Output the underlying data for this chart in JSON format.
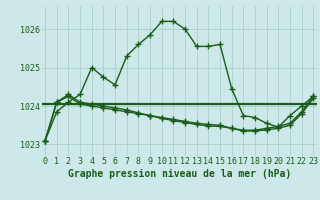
{
  "title": "Graphe pression niveau de la mer (hPa)",
  "x_labels": [
    "0",
    "1",
    "2",
    "3",
    "4",
    "5",
    "6",
    "7",
    "8",
    "9",
    "10",
    "11",
    "12",
    "13",
    "14",
    "15",
    "16",
    "17",
    "18",
    "19",
    "20",
    "21",
    "22",
    "23"
  ],
  "xlim": [
    -0.3,
    23.3
  ],
  "ylim": [
    1022.7,
    1026.6
  ],
  "yticks": [
    1023,
    1024,
    1025,
    1026
  ],
  "background_color": "#cce8e8",
  "grid_color": "#aacfcf",
  "line_color": "#1a5c1a",
  "line_width": 1.0,
  "marker": "+",
  "marker_size": 4,
  "marker_ew": 1.0,
  "series1": [
    1023.1,
    1023.85,
    1024.1,
    1024.3,
    1025.0,
    1024.75,
    1024.55,
    1025.3,
    1025.6,
    1025.85,
    1026.2,
    1026.2,
    1026.0,
    1025.55,
    1025.55,
    1025.6,
    1024.45,
    1023.75,
    1023.7,
    1023.55,
    1023.45,
    1023.75,
    1024.0,
    1024.25
  ],
  "series2": [
    1023.1,
    1024.1,
    1024.25,
    1024.05,
    1024.0,
    1023.95,
    1023.9,
    1023.85,
    1023.8,
    1023.75,
    1023.7,
    1023.65,
    1023.6,
    1023.55,
    1023.52,
    1023.5,
    1023.42,
    1023.35,
    1023.35,
    1023.38,
    1023.42,
    1023.5,
    1023.8,
    1024.2
  ],
  "series3": [
    1023.1,
    1024.1,
    1024.3,
    1024.1,
    1024.05,
    1024.0,
    1023.95,
    1023.9,
    1023.82,
    1023.75,
    1023.68,
    1023.62,
    1023.57,
    1023.52,
    1023.48,
    1023.47,
    1023.42,
    1023.37,
    1023.37,
    1023.42,
    1023.47,
    1023.55,
    1023.85,
    1024.25
  ],
  "hline_y": 1024.05,
  "font_color": "#1a5c1a",
  "tick_fontsize": 6.0,
  "title_fontsize": 7.0
}
